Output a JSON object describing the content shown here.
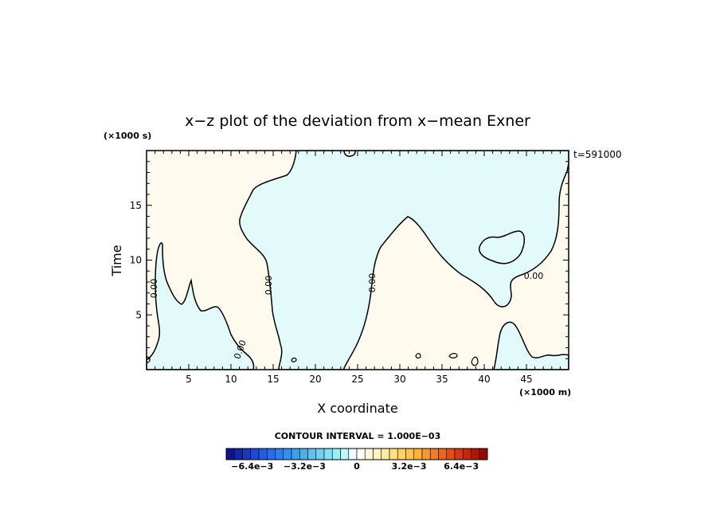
{
  "chart_data": {
    "type": "contour",
    "title": "x−z plot of the deviation from x−mean Exner",
    "xlabel": "X coordinate",
    "ylabel": "Time",
    "x_unit": "(×1000 m)",
    "y_unit": "(×1000 s)",
    "time_label": "t=591000",
    "xlim": [
      0,
      50
    ],
    "ylim": [
      0,
      20
    ],
    "x_ticks": [
      5,
      10,
      15,
      20,
      25,
      30,
      35,
      40,
      45
    ],
    "y_ticks": [
      5,
      10,
      15
    ],
    "contour_interval_text": "CONTOUR INTERVAL = 1.000E−03",
    "contour_labels": [
      "0.00",
      "0.00",
      "0.00",
      "0.00",
      "0.00"
    ],
    "colorbar": {
      "min": -0.008,
      "max": 0.008,
      "levels": 32,
      "tick_labels": [
        "−6.4e−3",
        "−3.2e−3",
        "0",
        "3.2e−3",
        "6.4e−3"
      ],
      "tick_values": [
        -0.0064,
        -0.0032,
        0,
        0.0032,
        0.0064
      ]
    },
    "colors": {
      "positive_fill": "#fffaee",
      "negative_fill": "#e2fafa",
      "contour": "#000000"
    }
  }
}
